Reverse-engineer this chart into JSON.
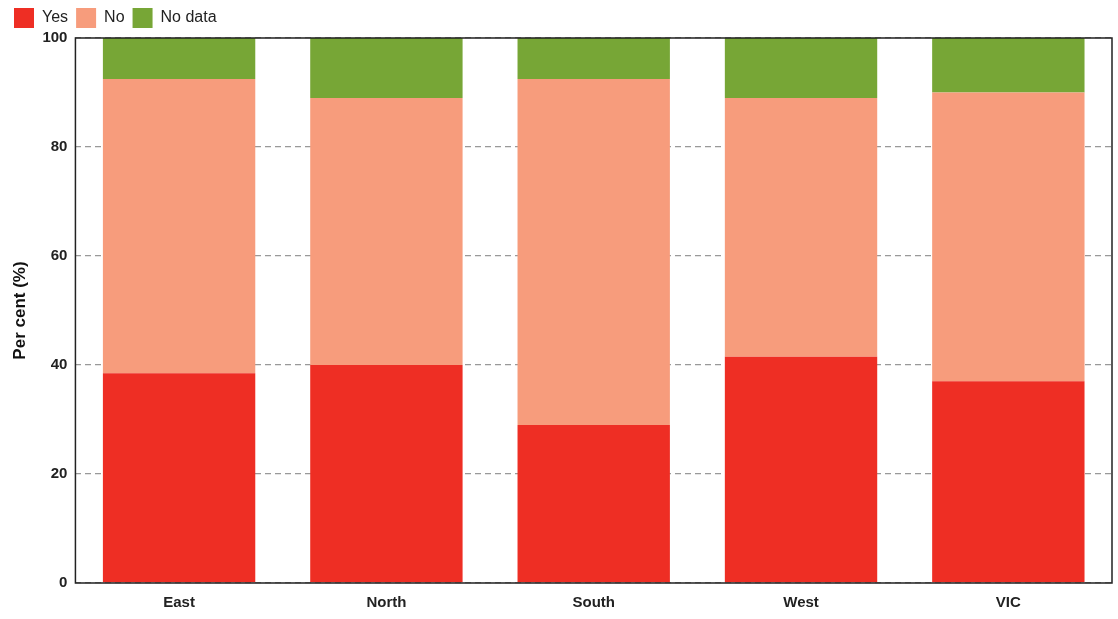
{
  "chart_data": {
    "type": "bar",
    "stacked": true,
    "ylabel": "Per cent (%)",
    "categories": [
      "East",
      "North",
      "South",
      "West",
      "VIC"
    ],
    "series": [
      {
        "name": "Yes",
        "color": "#ee2e24",
        "values": [
          38.5,
          40,
          29,
          41.5,
          37
        ]
      },
      {
        "name": "No",
        "color": "#f79c7c",
        "values": [
          54,
          49,
          63.5,
          47.5,
          53
        ]
      },
      {
        "name": "No data",
        "color": "#77a636",
        "values": [
          7.5,
          11,
          7.5,
          11,
          10
        ]
      }
    ],
    "ylim": [
      0,
      100
    ],
    "yticks": [
      0,
      20,
      40,
      60,
      80,
      100
    ],
    "grid": "y",
    "legend": "top left"
  }
}
